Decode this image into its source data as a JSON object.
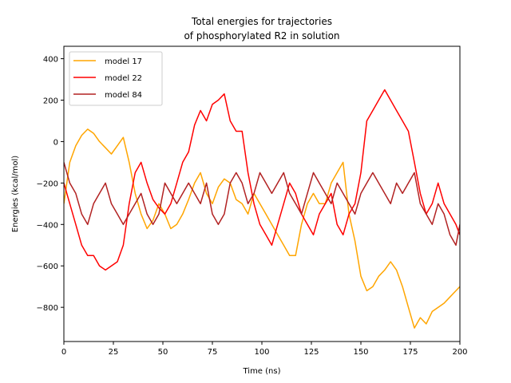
{
  "chart_data": {
    "type": "line",
    "title": "Total energies for trajectories\nof phosphorylated R2 in solution",
    "title_lines": [
      "Total energies for trajectories",
      "of phosphorylated R2 in solution"
    ],
    "xlabel": "Time (ns)",
    "ylabel": "Energies (kcal/mol)",
    "xlim": [
      0,
      200
    ],
    "ylim": [
      -965,
      460
    ],
    "xticks": [
      0,
      25,
      50,
      75,
      100,
      125,
      150,
      175,
      200
    ],
    "xtick_labels": [
      "0",
      "25",
      "50",
      "75",
      "100",
      "125",
      "150",
      "175",
      "200"
    ],
    "yticks": [
      -800,
      -600,
      -400,
      -200,
      0,
      200,
      400
    ],
    "ytick_labels": [
      "−800",
      "−600",
      "−400",
      "−200",
      "0",
      "200",
      "400"
    ],
    "grid": false,
    "legend_position": "upper-left",
    "series": [
      {
        "name": "model 17",
        "color": "#ffa500",
        "x": [
          0,
          3,
          6,
          9,
          12,
          15,
          18,
          21,
          24,
          27,
          30,
          33,
          36,
          39,
          42,
          45,
          48,
          51,
          54,
          57,
          60,
          63,
          66,
          69,
          72,
          75,
          78,
          81,
          84,
          87,
          90,
          93,
          96,
          99,
          102,
          105,
          108,
          111,
          114,
          117,
          120,
          123,
          126,
          129,
          132,
          135,
          138,
          141,
          144,
          147,
          150,
          153,
          156,
          159,
          162,
          165,
          168,
          171,
          174,
          177,
          180,
          183,
          186,
          189,
          192,
          195,
          198,
          200
        ],
        "values": [
          -300,
          -100,
          -20,
          30,
          60,
          40,
          0,
          -30,
          -60,
          -20,
          20,
          -100,
          -250,
          -350,
          -420,
          -380,
          -300,
          -350,
          -420,
          -400,
          -350,
          -280,
          -200,
          -150,
          -250,
          -300,
          -220,
          -180,
          -200,
          -280,
          -300,
          -350,
          -250,
          -300,
          -350,
          -400,
          -450,
          -500,
          -550,
          -550,
          -400,
          -300,
          -250,
          -300,
          -300,
          -200,
          -150,
          -100,
          -350,
          -480,
          -650,
          -720,
          -700,
          -650,
          -620,
          -580,
          -620,
          -700,
          -800,
          -900,
          -850,
          -880,
          -820,
          -800,
          -780,
          -750,
          -720,
          -700
        ]
      },
      {
        "name": "model 22",
        "color": "#ff0000",
        "x": [
          0,
          3,
          6,
          9,
          12,
          15,
          18,
          21,
          24,
          27,
          30,
          33,
          36,
          39,
          42,
          45,
          48,
          51,
          54,
          57,
          60,
          63,
          66,
          69,
          72,
          75,
          78,
          81,
          84,
          87,
          90,
          93,
          96,
          99,
          102,
          105,
          108,
          111,
          114,
          117,
          120,
          123,
          126,
          129,
          132,
          135,
          138,
          141,
          144,
          147,
          150,
          153,
          156,
          159,
          162,
          165,
          168,
          171,
          174,
          177,
          180,
          183,
          186,
          189,
          192,
          195,
          198,
          200
        ],
        "values": [
          -200,
          -300,
          -400,
          -500,
          -550,
          -550,
          -600,
          -620,
          -600,
          -580,
          -500,
          -300,
          -150,
          -100,
          -200,
          -280,
          -320,
          -350,
          -300,
          -200,
          -100,
          -50,
          80,
          150,
          100,
          180,
          200,
          230,
          100,
          50,
          50,
          -150,
          -300,
          -400,
          -450,
          -500,
          -400,
          -300,
          -200,
          -250,
          -350,
          -400,
          -450,
          -350,
          -300,
          -250,
          -400,
          -450,
          -350,
          -300,
          -150,
          100,
          150,
          200,
          250,
          200,
          150,
          100,
          50,
          -100,
          -250,
          -350,
          -300,
          -200,
          -300,
          -350,
          -400,
          -450
        ]
      },
      {
        "name": "model 84",
        "color": "#b22222",
        "x": [
          0,
          3,
          6,
          9,
          12,
          15,
          18,
          21,
          24,
          27,
          30,
          33,
          36,
          39,
          42,
          45,
          48,
          51,
          54,
          57,
          60,
          63,
          66,
          69,
          72,
          75,
          78,
          81,
          84,
          87,
          90,
          93,
          96,
          99,
          102,
          105,
          108,
          111,
          114,
          117,
          120,
          123,
          126,
          129,
          132,
          135,
          138,
          141,
          144,
          147,
          150,
          153,
          156,
          159,
          162,
          165,
          168,
          171,
          174,
          177,
          180,
          183,
          186,
          189,
          192,
          195,
          198,
          200
        ],
        "values": [
          -100,
          -200,
          -250,
          -350,
          -400,
          -300,
          -250,
          -200,
          -300,
          -350,
          -400,
          -350,
          -300,
          -250,
          -350,
          -400,
          -350,
          -200,
          -250,
          -300,
          -250,
          -200,
          -250,
          -300,
          -200,
          -350,
          -400,
          -350,
          -200,
          -150,
          -200,
          -300,
          -250,
          -150,
          -200,
          -250,
          -200,
          -150,
          -250,
          -300,
          -350,
          -250,
          -150,
          -200,
          -250,
          -300,
          -200,
          -250,
          -300,
          -350,
          -250,
          -200,
          -150,
          -200,
          -250,
          -300,
          -200,
          -250,
          -200,
          -150,
          -300,
          -350,
          -400,
          -300,
          -350,
          -450,
          -500,
          -400
        ]
      }
    ]
  }
}
